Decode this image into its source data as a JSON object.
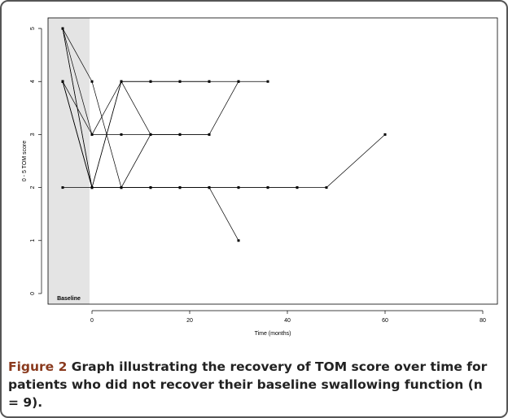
{
  "chart_data": {
    "type": "line",
    "title": "Figure 2",
    "caption": "Graph illustrating the recovery of TOM score over time for patients who did not recover their baseline swallowing function (n = 9).",
    "x_label": "Time (months)",
    "y_label": "0 - 5 TOM score",
    "annotation": "Baseline",
    "baseline_span": [
      -9,
      -0.5
    ],
    "color": "#000000",
    "x": [
      -6,
      0,
      6,
      12,
      18,
      24,
      30,
      36,
      42,
      48,
      60
    ],
    "series": [
      {
        "values": [
          5,
          3,
          4,
          4,
          4,
          4,
          4,
          4,
          null,
          null,
          null
        ]
      },
      {
        "values": [
          5,
          2,
          2,
          2,
          2,
          2,
          2,
          2,
          2,
          2,
          3
        ]
      },
      {
        "values": [
          5,
          4,
          2,
          2,
          2,
          2,
          1,
          null,
          null,
          null,
          null
        ]
      },
      {
        "values": [
          4,
          2,
          4,
          3,
          3,
          3,
          4,
          null,
          null,
          null,
          null
        ]
      },
      {
        "values": [
          4,
          3,
          3,
          3,
          3,
          null,
          null,
          null,
          null,
          null,
          null
        ]
      },
      {
        "values": [
          4,
          2,
          2,
          2,
          2,
          2,
          null,
          null,
          null,
          null,
          null
        ]
      },
      {
        "values": [
          2,
          2,
          2,
          2,
          2,
          2,
          2,
          2,
          2,
          null,
          null
        ]
      },
      {
        "values": [
          5,
          2,
          4,
          4,
          4,
          4,
          null,
          null,
          null,
          null,
          null
        ]
      },
      {
        "values": [
          4,
          2,
          2,
          3,
          3,
          3,
          null,
          null,
          null,
          null,
          null
        ]
      }
    ],
    "xlim": [
      -9,
      83
    ],
    "ylim": [
      -0.2,
      5.2
    ],
    "xticks": [
      0,
      20,
      40,
      60,
      80
    ],
    "yticks": [
      0,
      1,
      2,
      3,
      4,
      5
    ]
  }
}
